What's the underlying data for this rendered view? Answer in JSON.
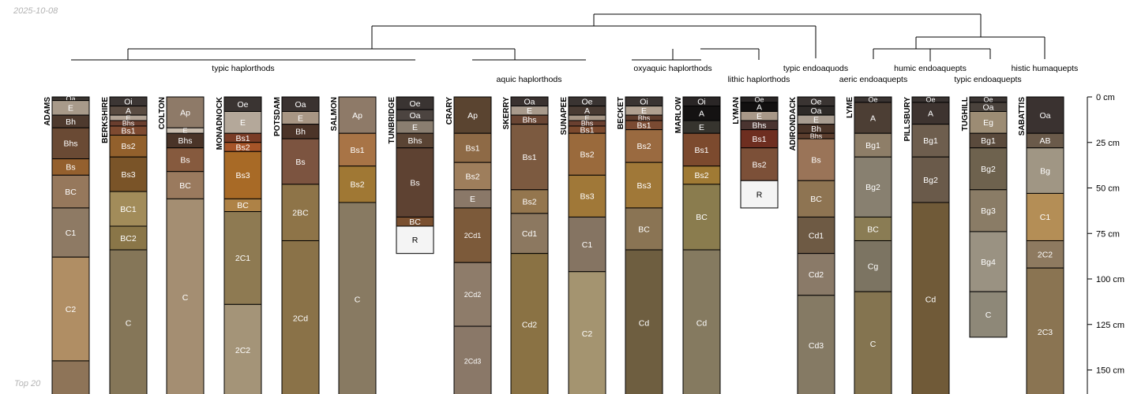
{
  "date_label": "2025-10-08",
  "footer_note": "Top 20",
  "depth_axis": {
    "unit": "cm",
    "max_depth": 160,
    "ticks": [
      0,
      25,
      50,
      75,
      100,
      125,
      150
    ]
  },
  "groups": [
    {
      "label": "typic haplorthods",
      "row": 0
    },
    {
      "label": "aquic haplorthods",
      "row": 1
    },
    {
      "label": "oxyaquic haplorthods",
      "row": 0
    },
    {
      "label": "lithic haplorthods",
      "row": 1
    },
    {
      "label": "typic endoaquods",
      "row": 0
    },
    {
      "label": "aeric endoaquepts",
      "row": 1
    },
    {
      "label": "humic endoaquepts",
      "row": 0
    },
    {
      "label": "typic endoaquepts",
      "row": 1
    },
    {
      "label": "histic humaquepts",
      "row": 0
    }
  ],
  "profiles": [
    {
      "name": "ADAMS",
      "horizons": [
        {
          "name": "Oa",
          "top": 0,
          "bottom": 2,
          "color": "#3a3430"
        },
        {
          "name": "E",
          "top": 2,
          "bottom": 10,
          "color": "#a89a8a"
        },
        {
          "name": "Bh",
          "top": 10,
          "bottom": 17,
          "color": "#4e3a2e"
        },
        {
          "name": "Bhs",
          "top": 17,
          "bottom": 34,
          "color": "#6a4a34"
        },
        {
          "name": "Bs",
          "top": 34,
          "bottom": 43,
          "color": "#94602e"
        },
        {
          "name": "BC",
          "top": 43,
          "bottom": 61,
          "color": "#96785c"
        },
        {
          "name": "C1",
          "top": 61,
          "bottom": 88,
          "color": "#8e7a64"
        },
        {
          "name": "C2",
          "top": 88,
          "bottom": 145,
          "color": "#b08e64"
        },
        {
          "name": "",
          "top": 145,
          "bottom": 165,
          "color": "#8e7458"
        }
      ]
    },
    {
      "name": "BERKSHIRE",
      "horizons": [
        {
          "name": "Oi",
          "top": 0,
          "bottom": 5,
          "color": "#3c3634"
        },
        {
          "name": "A",
          "top": 5,
          "bottom": 10,
          "color": "#5a4c42"
        },
        {
          "name": "E",
          "top": 10,
          "bottom": 13,
          "color": "#b2a496"
        },
        {
          "name": "Bhs",
          "top": 13,
          "bottom": 16,
          "color": "#6a3e2e"
        },
        {
          "name": "Bs1",
          "top": 16,
          "bottom": 21,
          "color": "#7e4a30"
        },
        {
          "name": "Bs2",
          "top": 21,
          "bottom": 33,
          "color": "#92602c"
        },
        {
          "name": "Bs3",
          "top": 33,
          "bottom": 52,
          "color": "#7a5428"
        },
        {
          "name": "BC1",
          "top": 52,
          "bottom": 71,
          "color": "#a28c5a"
        },
        {
          "name": "BC2",
          "top": 71,
          "bottom": 84,
          "color": "#8a7648"
        },
        {
          "name": "C",
          "top": 84,
          "bottom": 165,
          "color": "#857658"
        }
      ]
    },
    {
      "name": "COLTON",
      "horizons": [
        {
          "name": "Ap",
          "top": 0,
          "bottom": 17,
          "color": "#8e7a68"
        },
        {
          "name": "E",
          "top": 17,
          "bottom": 20,
          "color": "#c8bcae"
        },
        {
          "name": "Bhs",
          "top": 20,
          "bottom": 28,
          "color": "#4a3428"
        },
        {
          "name": "Bs",
          "top": 28,
          "bottom": 41,
          "color": "#865a3e"
        },
        {
          "name": "BC",
          "top": 41,
          "bottom": 56,
          "color": "#9a7a5e"
        },
        {
          "name": "C",
          "top": 56,
          "bottom": 165,
          "color": "#a48e72"
        }
      ]
    },
    {
      "name": "MONADNOCK",
      "horizons": [
        {
          "name": "Oe",
          "top": 0,
          "bottom": 8,
          "color": "#3a3432"
        },
        {
          "name": "E",
          "top": 8,
          "bottom": 20,
          "color": "#b4a89a"
        },
        {
          "name": "Bs1",
          "top": 20,
          "bottom": 25,
          "color": "#7a3c26"
        },
        {
          "name": "Bs2",
          "top": 25,
          "bottom": 30,
          "color": "#a65428"
        },
        {
          "name": "Bs3",
          "top": 30,
          "bottom": 56,
          "color": "#a86a26"
        },
        {
          "name": "BC",
          "top": 56,
          "bottom": 63,
          "color": "#ae8246"
        },
        {
          "name": "2C1",
          "top": 63,
          "bottom": 114,
          "color": "#8e7a52"
        },
        {
          "name": "2C2",
          "top": 114,
          "bottom": 165,
          "color": "#a49478"
        }
      ]
    },
    {
      "name": "POTSDAM",
      "horizons": [
        {
          "name": "Oa",
          "top": 0,
          "bottom": 8,
          "color": "#3a3230"
        },
        {
          "name": "E",
          "top": 8,
          "bottom": 15,
          "color": "#a89684"
        },
        {
          "name": "Bh",
          "top": 15,
          "bottom": 23,
          "color": "#4c3428"
        },
        {
          "name": "Bs",
          "top": 23,
          "bottom": 48,
          "color": "#7c5440"
        },
        {
          "name": "2BC",
          "top": 48,
          "bottom": 79,
          "color": "#8e7448"
        },
        {
          "name": "2Cd",
          "top": 79,
          "bottom": 165,
          "color": "#8a7248"
        }
      ]
    },
    {
      "name": "SALMON",
      "horizons": [
        {
          "name": "Ap",
          "top": 0,
          "bottom": 20,
          "color": "#8e7a68"
        },
        {
          "name": "Bs1",
          "top": 20,
          "bottom": 38,
          "color": "#a87446"
        },
        {
          "name": "Bs2",
          "top": 38,
          "bottom": 58,
          "color": "#a07834"
        },
        {
          "name": "C",
          "top": 58,
          "bottom": 165,
          "color": "#887a62"
        }
      ]
    },
    {
      "name": "TUNBRIDGE",
      "horizons": [
        {
          "name": "Oe",
          "top": 0,
          "bottom": 7,
          "color": "#3a3432"
        },
        {
          "name": "Oa",
          "top": 7,
          "bottom": 13,
          "color": "#4c4440"
        },
        {
          "name": "E",
          "top": 13,
          "bottom": 20,
          "color": "#8a7e70"
        },
        {
          "name": "Bhs",
          "top": 20,
          "bottom": 28,
          "color": "#5a4434"
        },
        {
          "name": "Bs",
          "top": 28,
          "bottom": 66,
          "color": "#5e4232"
        },
        {
          "name": "BC",
          "top": 66,
          "bottom": 71,
          "color": "#7a5030"
        },
        {
          "name": "R",
          "top": 71,
          "bottom": 86,
          "color": "#f4f4f4"
        }
      ]
    },
    {
      "name": "CRARY",
      "horizons": [
        {
          "name": "Ap",
          "top": 0,
          "bottom": 20,
          "color": "#5a4430"
        },
        {
          "name": "Bs1",
          "top": 20,
          "bottom": 36,
          "color": "#8e6a46"
        },
        {
          "name": "Bs2",
          "top": 36,
          "bottom": 51,
          "color": "#9e7e5c"
        },
        {
          "name": "E",
          "top": 51,
          "bottom": 61,
          "color": "#8a7868"
        },
        {
          "name": "2Cd1",
          "top": 61,
          "bottom": 91,
          "color": "#7c5a3a"
        },
        {
          "name": "2Cd2",
          "top": 91,
          "bottom": 126,
          "color": "#8e7c6a"
        },
        {
          "name": "2Cd3",
          "top": 126,
          "bottom": 165,
          "color": "#8a7868"
        }
      ]
    },
    {
      "name": "SKERRY",
      "horizons": [
        {
          "name": "Oa",
          "top": 0,
          "bottom": 5,
          "color": "#3a3230"
        },
        {
          "name": "E",
          "top": 5,
          "bottom": 10,
          "color": "#a89a8c"
        },
        {
          "name": "Bhs",
          "top": 10,
          "bottom": 15,
          "color": "#6a4634"
        },
        {
          "name": "Bs1",
          "top": 15,
          "bottom": 51,
          "color": "#7c5a40"
        },
        {
          "name": "Bs2",
          "top": 51,
          "bottom": 64,
          "color": "#94764e"
        },
        {
          "name": "Cd1",
          "top": 64,
          "bottom": 86,
          "color": "#8c7860"
        },
        {
          "name": "Cd2",
          "top": 86,
          "bottom": 165,
          "color": "#8a7244"
        }
      ]
    },
    {
      "name": "SUNAPEE",
      "horizons": [
        {
          "name": "Oe",
          "top": 0,
          "bottom": 5,
          "color": "#3a3432"
        },
        {
          "name": "A",
          "top": 5,
          "bottom": 10,
          "color": "#4a3c34"
        },
        {
          "name": "E",
          "top": 10,
          "bottom": 13,
          "color": "#a69686"
        },
        {
          "name": "Bhs",
          "top": 13,
          "bottom": 16,
          "color": "#6a4030"
        },
        {
          "name": "Bs1",
          "top": 16,
          "bottom": 20,
          "color": "#7c4a2e"
        },
        {
          "name": "Bs2",
          "top": 20,
          "bottom": 43,
          "color": "#9a6a3c"
        },
        {
          "name": "Bs3",
          "top": 43,
          "bottom": 66,
          "color": "#a07838"
        },
        {
          "name": "C1",
          "top": 66,
          "bottom": 96,
          "color": "#857462"
        },
        {
          "name": "C2",
          "top": 96,
          "bottom": 165,
          "color": "#a49470"
        }
      ]
    },
    {
      "name": "BECKET",
      "horizons": [
        {
          "name": "Oi",
          "top": 0,
          "bottom": 5,
          "color": "#3a3432"
        },
        {
          "name": "E",
          "top": 5,
          "bottom": 10,
          "color": "#b0a090"
        },
        {
          "name": "Bhs",
          "top": 10,
          "bottom": 13,
          "color": "#5e3c2c"
        },
        {
          "name": "Bs1",
          "top": 13,
          "bottom": 18,
          "color": "#7a4a32"
        },
        {
          "name": "Bs2",
          "top": 18,
          "bottom": 36,
          "color": "#9a6a40"
        },
        {
          "name": "Bs3",
          "top": 36,
          "bottom": 61,
          "color": "#a07838"
        },
        {
          "name": "BC",
          "top": 61,
          "bottom": 84,
          "color": "#8a7454"
        },
        {
          "name": "Cd",
          "top": 84,
          "bottom": 165,
          "color": "#6e5e40"
        }
      ]
    },
    {
      "name": "MARLOW",
      "horizons": [
        {
          "name": "Oi",
          "top": 0,
          "bottom": 5,
          "color": "#2a2626"
        },
        {
          "name": "A",
          "top": 5,
          "bottom": 13,
          "color": "#141212"
        },
        {
          "name": "E",
          "top": 13,
          "bottom": 20,
          "color": "#36342e"
        },
        {
          "name": "Bs1",
          "top": 20,
          "bottom": 38,
          "color": "#7c4a2e"
        },
        {
          "name": "Bs2",
          "top": 38,
          "bottom": 48,
          "color": "#a07a34"
        },
        {
          "name": "BC",
          "top": 48,
          "bottom": 84,
          "color": "#8a7c4e"
        },
        {
          "name": "Cd",
          "top": 84,
          "bottom": 165,
          "color": "#857a60"
        }
      ]
    },
    {
      "name": "LYMAN",
      "horizons": [
        {
          "name": "Oe",
          "top": 0,
          "bottom": 3,
          "color": "#2a2626"
        },
        {
          "name": "A",
          "top": 3,
          "bottom": 8,
          "color": "#121010"
        },
        {
          "name": "E",
          "top": 8,
          "bottom": 13,
          "color": "#a89888"
        },
        {
          "name": "Bhs",
          "top": 13,
          "bottom": 18,
          "color": "#4a3430"
        },
        {
          "name": "Bs1",
          "top": 18,
          "bottom": 28,
          "color": "#6e2e20"
        },
        {
          "name": "Bs2",
          "top": 28,
          "bottom": 46,
          "color": "#7c5038"
        },
        {
          "name": "R",
          "top": 46,
          "bottom": 61,
          "color": "#f4f4f4"
        }
      ]
    },
    {
      "name": "ADIRONDACK",
      "horizons": [
        {
          "name": "Oe",
          "top": 0,
          "bottom": 5,
          "color": "#3a3432"
        },
        {
          "name": "Oa",
          "top": 5,
          "bottom": 10,
          "color": "#2e2a28"
        },
        {
          "name": "E",
          "top": 10,
          "bottom": 15,
          "color": "#a89c90"
        },
        {
          "name": "Bh",
          "top": 15,
          "bottom": 20,
          "color": "#4a3428"
        },
        {
          "name": "Bhs",
          "top": 20,
          "bottom": 23,
          "color": "#5c3e2e"
        },
        {
          "name": "Bs",
          "top": 23,
          "bottom": 46,
          "color": "#9a7458"
        },
        {
          "name": "BC",
          "top": 46,
          "bottom": 66,
          "color": "#8e7452"
        },
        {
          "name": "Cd1",
          "top": 66,
          "bottom": 86,
          "color": "#6e5a44"
        },
        {
          "name": "Cd2",
          "top": 86,
          "bottom": 109,
          "color": "#8a7a68"
        },
        {
          "name": "Cd3",
          "top": 109,
          "bottom": 165,
          "color": "#857a64"
        }
      ]
    },
    {
      "name": "LYME",
      "horizons": [
        {
          "name": "Oe",
          "top": 0,
          "bottom": 3,
          "color": "#3a3432"
        },
        {
          "name": "A",
          "top": 3,
          "bottom": 20,
          "color": "#4c3e34"
        },
        {
          "name": "Bg1",
          "top": 20,
          "bottom": 33,
          "color": "#8e7e68"
        },
        {
          "name": "Bg2",
          "top": 33,
          "bottom": 66,
          "color": "#888070"
        },
        {
          "name": "BC",
          "top": 66,
          "bottom": 79,
          "color": "#8a7c54"
        },
        {
          "name": "Cg",
          "top": 79,
          "bottom": 107,
          "color": "#7c7462"
        },
        {
          "name": "C",
          "top": 107,
          "bottom": 165,
          "color": "#847450"
        }
      ]
    },
    {
      "name": "PILLSBURY",
      "horizons": [
        {
          "name": "Oe",
          "top": 0,
          "bottom": 3,
          "color": "#3a3432"
        },
        {
          "name": "A",
          "top": 3,
          "bottom": 15,
          "color": "#3e3430"
        },
        {
          "name": "Bg1",
          "top": 15,
          "bottom": 33,
          "color": "#6e5e4e"
        },
        {
          "name": "Bg2",
          "top": 33,
          "bottom": 58,
          "color": "#6a5a4a"
        },
        {
          "name": "Cd",
          "top": 58,
          "bottom": 165,
          "color": "#705a38"
        }
      ]
    },
    {
      "name": "TUGHILL",
      "horizons": [
        {
          "name": "Oe",
          "top": 0,
          "bottom": 3,
          "color": "#3a3432"
        },
        {
          "name": "Oa",
          "top": 3,
          "bottom": 8,
          "color": "#4a423c"
        },
        {
          "name": "Eg",
          "top": 8,
          "bottom": 20,
          "color": "#9c8c74"
        },
        {
          "name": "Bg1",
          "top": 20,
          "bottom": 28,
          "color": "#5a4a3c"
        },
        {
          "name": "Bg2",
          "top": 28,
          "bottom": 51,
          "color": "#6e624e"
        },
        {
          "name": "Bg3",
          "top": 51,
          "bottom": 74,
          "color": "#8a7c66"
        },
        {
          "name": "Bg4",
          "top": 74,
          "bottom": 107,
          "color": "#9a9282"
        },
        {
          "name": "C",
          "top": 107,
          "bottom": 132,
          "color": "#8e8878"
        }
      ]
    },
    {
      "name": "SABATTIS",
      "horizons": [
        {
          "name": "Oa",
          "top": 0,
          "bottom": 20,
          "color": "#3a3230"
        },
        {
          "name": "AB",
          "top": 20,
          "bottom": 28,
          "color": "#6a5a4a"
        },
        {
          "name": "Bg",
          "top": 28,
          "bottom": 53,
          "color": "#a09684"
        },
        {
          "name": "C1",
          "top": 53,
          "bottom": 79,
          "color": "#b48e56"
        },
        {
          "name": "2C2",
          "top": 79,
          "bottom": 94,
          "color": "#8e7a60"
        },
        {
          "name": "2C3",
          "top": 94,
          "bottom": 165,
          "color": "#8a7452"
        }
      ]
    }
  ]
}
